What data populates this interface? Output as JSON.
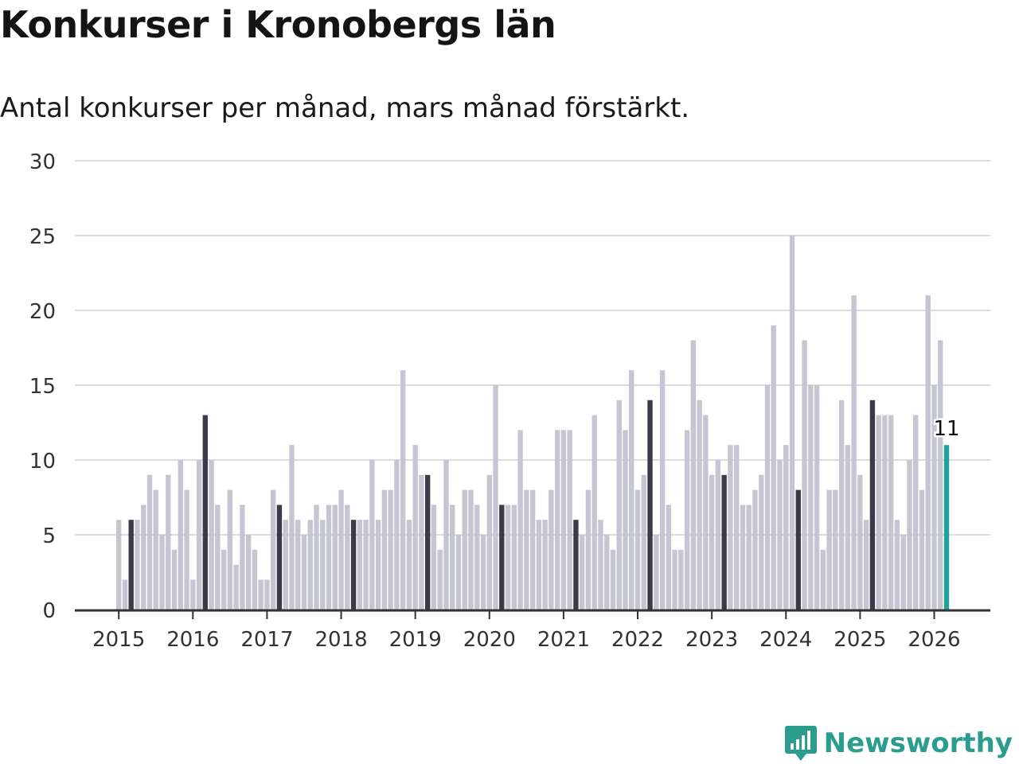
{
  "title": "Konkurser i Kronobergs län",
  "subtitle": "Antal konkurser per månad, mars månad förstärkt.",
  "brand": {
    "name": "Newsworthy",
    "icon": "newsworthy-logo-icon",
    "color": "#2a9d8f"
  },
  "colors": {
    "bar": "#c6c5d2",
    "highlight": "#3b3a48",
    "latest": "#1fa493",
    "grid": "#dcdcdc",
    "axis": "#333333",
    "text": "#333333"
  },
  "chart_data": {
    "type": "bar",
    "title": "Konkurser i Kronobergs län",
    "subtitle": "Antal konkurser per månad, mars månad förstärkt.",
    "xlabel": "",
    "ylabel": "",
    "ylim": [
      0,
      30
    ],
    "yticks": [
      0,
      5,
      10,
      15,
      20,
      25,
      30
    ],
    "grid": true,
    "start": "2015-01",
    "highlight_month": "mars",
    "year_ticks": [
      "2015",
      "2016",
      "2017",
      "2018",
      "2019",
      "2020",
      "2021",
      "2022",
      "2023",
      "2024",
      "2025",
      "2026"
    ],
    "values": [
      6,
      2,
      6,
      6,
      7,
      9,
      8,
      5,
      9,
      4,
      10,
      8,
      2,
      10,
      13,
      10,
      7,
      4,
      8,
      3,
      7,
      5,
      4,
      2,
      2,
      8,
      7,
      6,
      11,
      6,
      5,
      6,
      7,
      6,
      7,
      7,
      8,
      7,
      6,
      6,
      6,
      10,
      6,
      8,
      8,
      10,
      16,
      6,
      11,
      9,
      9,
      7,
      4,
      10,
      7,
      5,
      8,
      8,
      7,
      5,
      9,
      15,
      7,
      7,
      7,
      12,
      8,
      8,
      6,
      6,
      8,
      12,
      12,
      12,
      6,
      5,
      8,
      13,
      6,
      5,
      4,
      14,
      12,
      16,
      8,
      9,
      14,
      5,
      16,
      7,
      4,
      4,
      12,
      18,
      14,
      13,
      9,
      10,
      9,
      11,
      11,
      7,
      7,
      8,
      9,
      15,
      19,
      10,
      11,
      25,
      8,
      18,
      15,
      15,
      4,
      8,
      8,
      14,
      11,
      21,
      9,
      6,
      14,
      13,
      13,
      13,
      6,
      5,
      10,
      13,
      8,
      21,
      15,
      18,
      11
    ],
    "latest_label": "11"
  }
}
